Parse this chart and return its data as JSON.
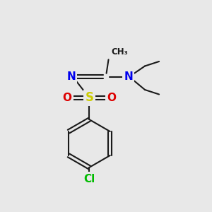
{
  "bg_color": "#e8e8e8",
  "bond_color": "#1a1a1a",
  "bond_lw": 1.5,
  "S_color": "#cccc00",
  "N_color": "#0000ee",
  "O_color": "#dd0000",
  "Cl_color": "#00bb00",
  "C_color": "#1a1a1a",
  "font_size_atom": 11,
  "font_size_ch3": 8.5,
  "xlim": [
    0,
    10
  ],
  "ylim": [
    0,
    10
  ]
}
